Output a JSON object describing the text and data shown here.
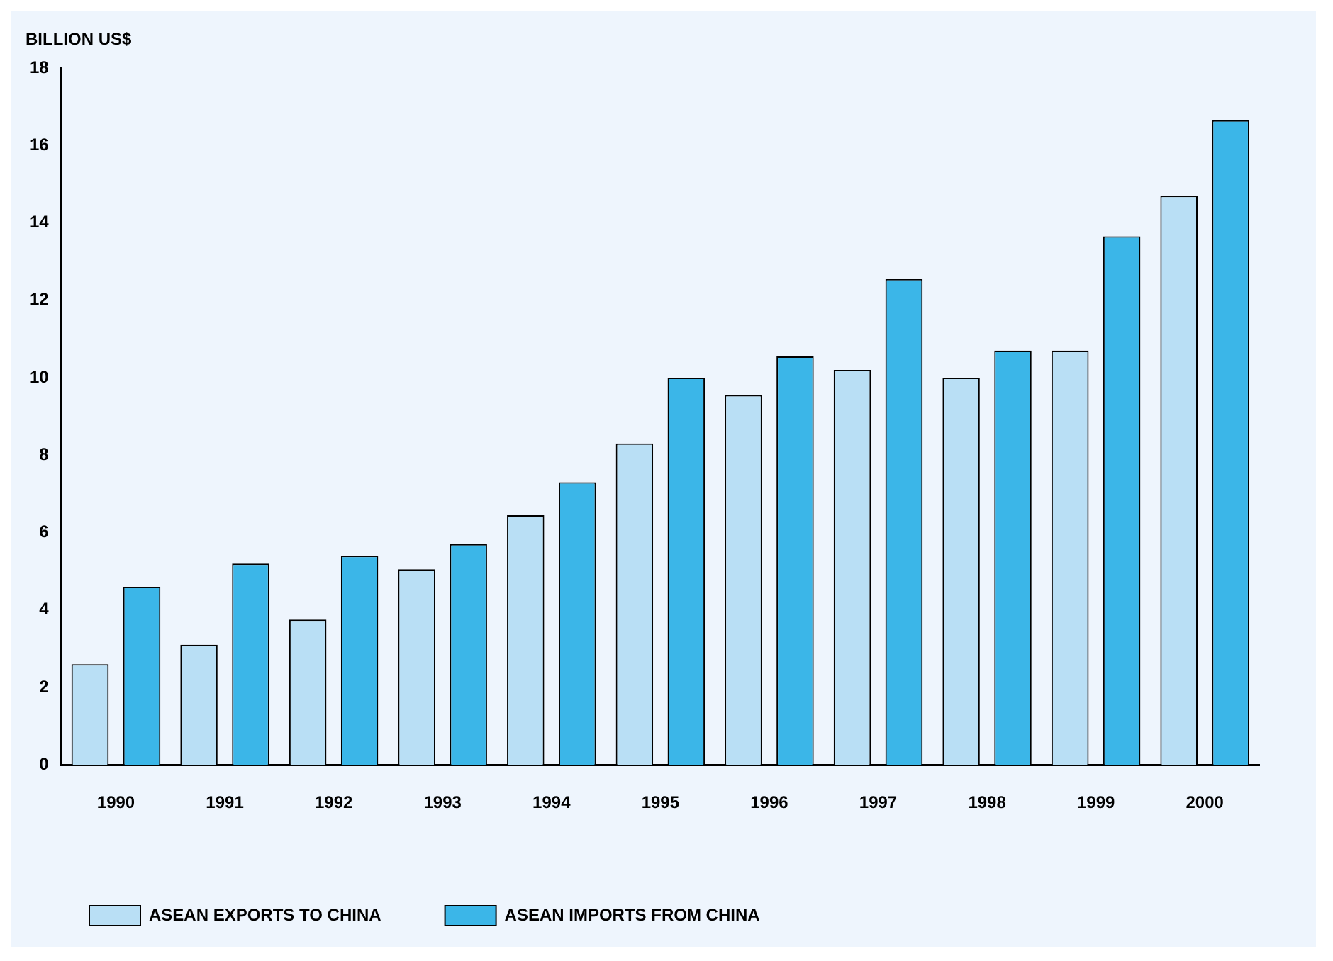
{
  "chart_data": {
    "type": "bar",
    "ylabel": "BILLION US$",
    "categories": [
      "1990",
      "1991",
      "1992",
      "1993",
      "1994",
      "1995",
      "1996",
      "1997",
      "1998",
      "1999",
      "2000"
    ],
    "series": [
      {
        "name": "ASEAN EXPORTS TO CHINA",
        "color": "#b9dff5",
        "values": [
          2.6,
          3.1,
          3.75,
          5.05,
          6.45,
          8.3,
          9.55,
          10.2,
          10.0,
          10.7,
          14.7
        ]
      },
      {
        "name": "ASEAN IMPORTS FROM CHINA",
        "color": "#3bb6e8",
        "values": [
          4.6,
          5.2,
          5.4,
          5.7,
          7.3,
          10.0,
          10.55,
          12.55,
          10.7,
          13.65,
          16.65
        ]
      }
    ],
    "ylim": [
      0,
      18
    ],
    "yticks": [
      0,
      2,
      4,
      6,
      8,
      10,
      12,
      14,
      16,
      18
    ],
    "grid": false,
    "legend": "bottom left"
  }
}
